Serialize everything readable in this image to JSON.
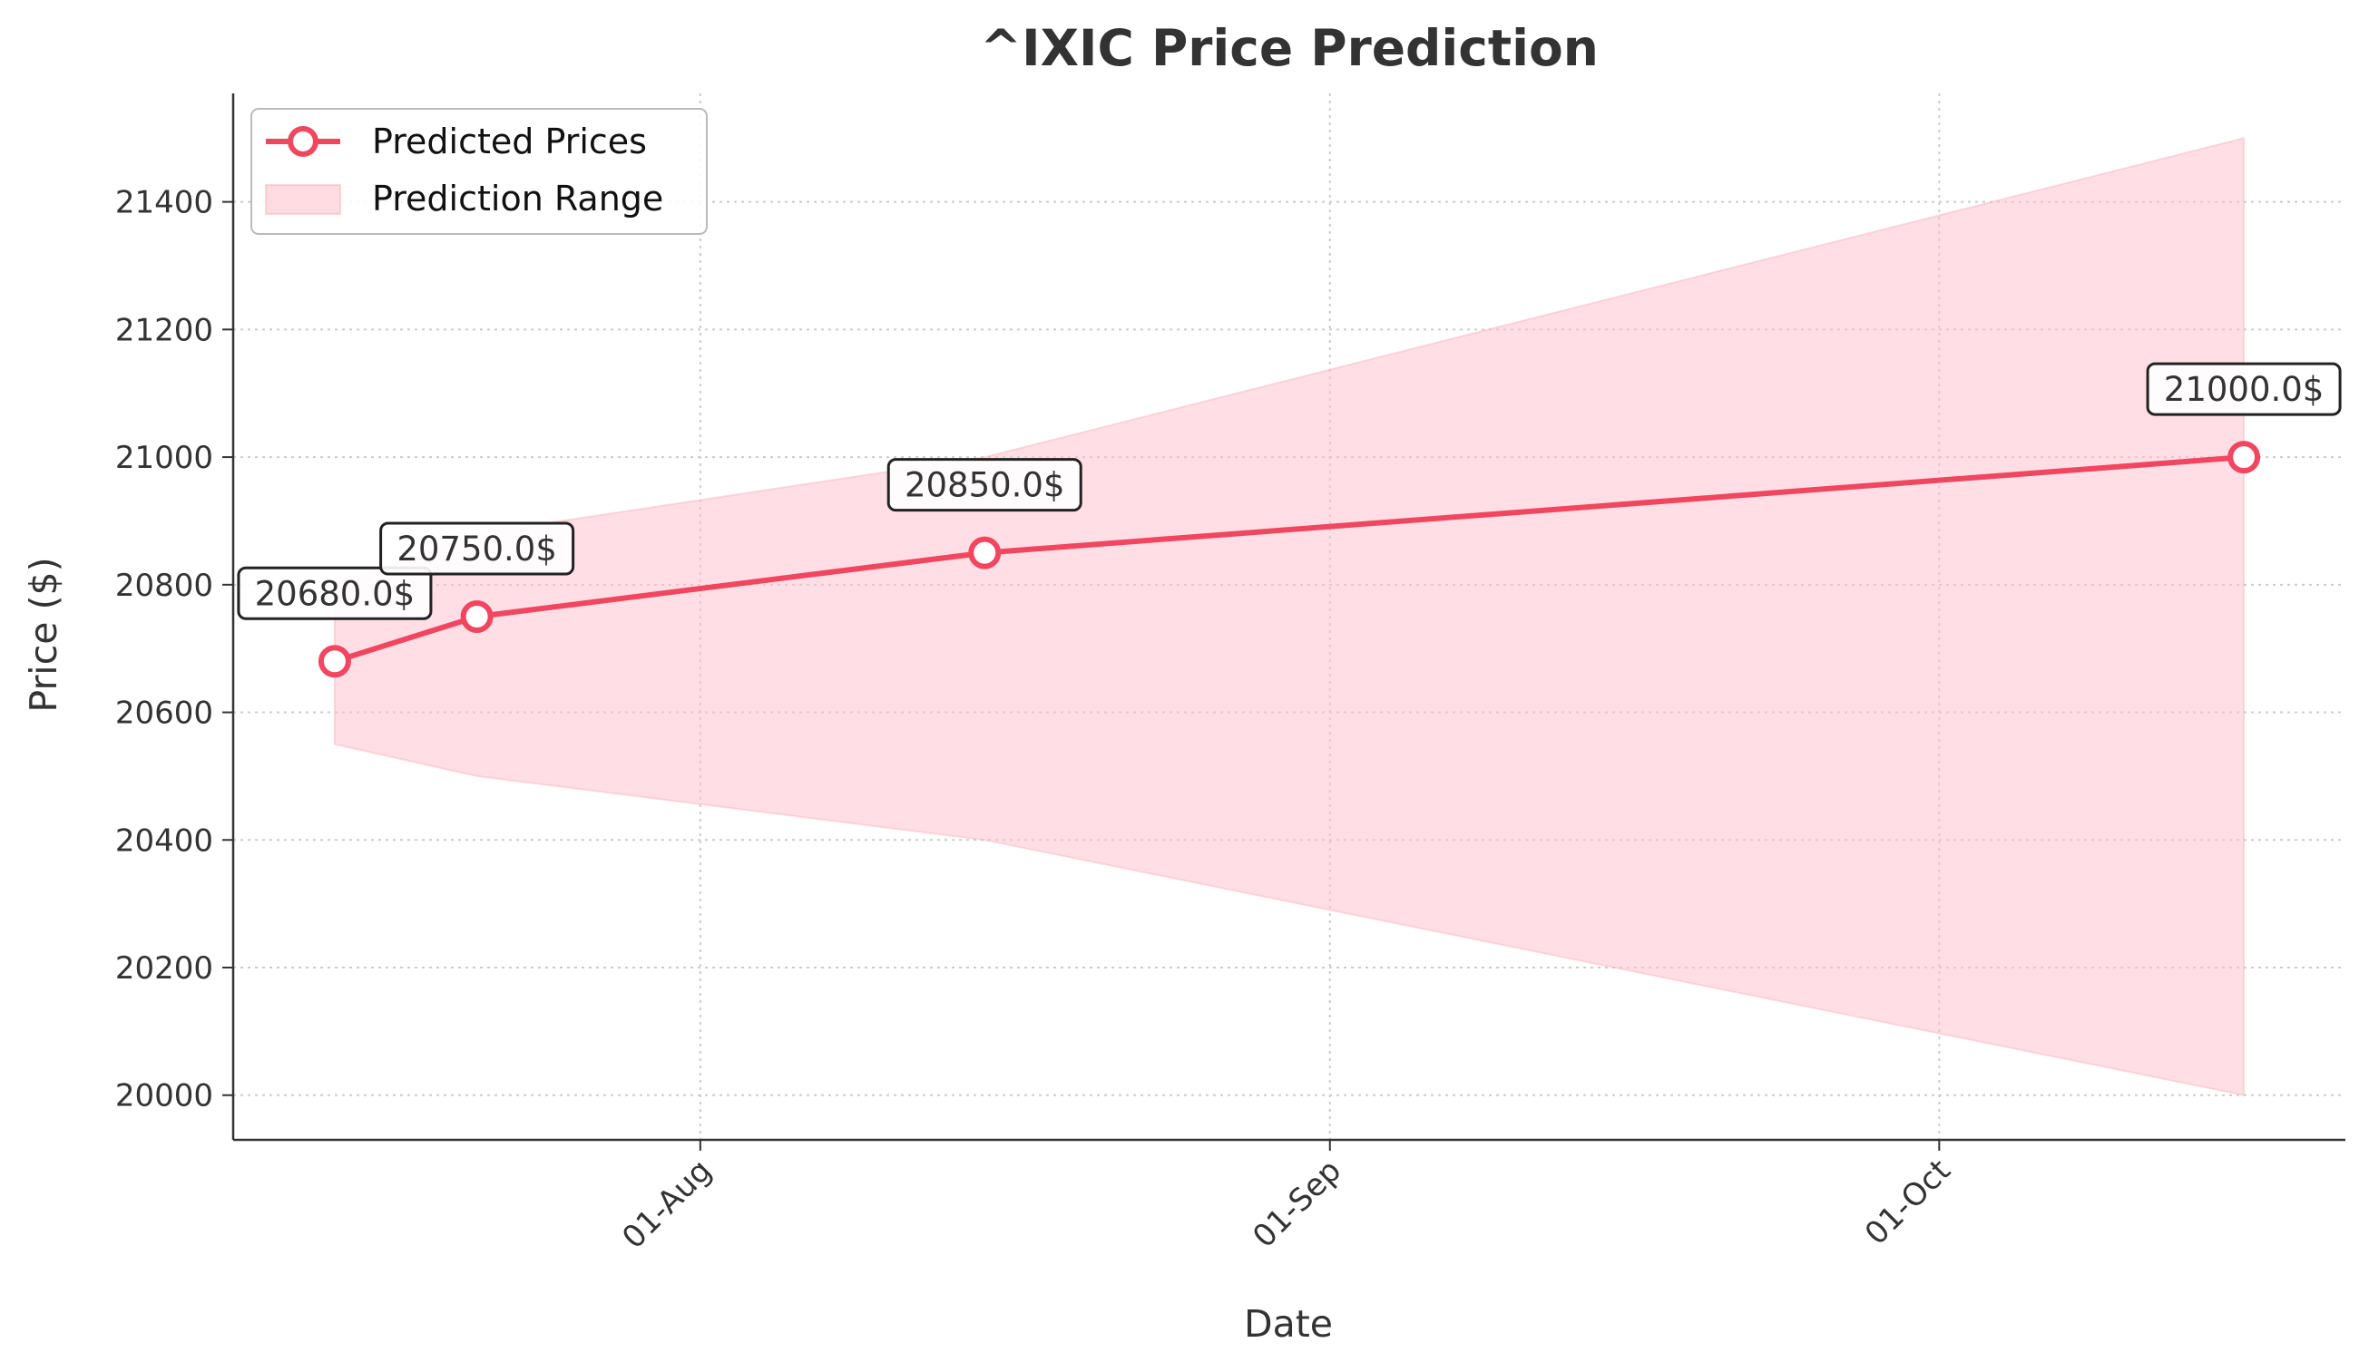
{
  "chart_data": {
    "type": "line",
    "title": "^IXIC Price Prediction",
    "xlabel": "Date",
    "ylabel": "Price ($)",
    "x": [
      "2024-07-14",
      "2024-07-21",
      "2024-08-15",
      "2024-10-16"
    ],
    "series": [
      {
        "name": "Predicted Prices",
        "values": [
          20680.0,
          20750.0,
          20850.0,
          21000.0
        ],
        "annotations": [
          "20680.0$",
          "20750.0$",
          "20850.0$",
          "21000.0$"
        ],
        "color": "#F0465F"
      }
    ],
    "range": {
      "name": "Prediction Range",
      "upper": [
        20800,
        20880,
        21000,
        21500
      ],
      "lower": [
        20550,
        20500,
        20400,
        20000
      ],
      "color": "#FFC0CB"
    },
    "x_ticks": [
      {
        "date": "2024-08-01",
        "label": "01-Aug"
      },
      {
        "date": "2024-09-01",
        "label": "01-Sep"
      },
      {
        "date": "2024-10-01",
        "label": "01-Oct"
      }
    ],
    "y_ticks": [
      20000,
      20200,
      20400,
      20600,
      20800,
      21000,
      21200,
      21400
    ],
    "xlim": [
      "2024-07-09",
      "2024-10-21"
    ],
    "ylim": [
      19930,
      21570
    ],
    "grid": true,
    "legend_position": "top-left"
  }
}
